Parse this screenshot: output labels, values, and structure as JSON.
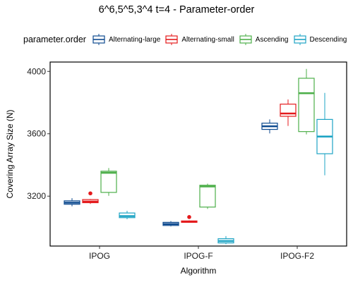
{
  "chart_data": {
    "type": "boxplot",
    "title": "6^6,5^5,3^4 t=4 - Parameter-order",
    "xlabel": "Algorithm",
    "ylabel": "Covering Array Size (N)",
    "categories": [
      "IPOG",
      "IPOG-F",
      "IPOG-F2"
    ],
    "ylim": [
      2880,
      4060
    ],
    "yticks": [
      3200,
      3600,
      4000
    ],
    "grid": false,
    "legend": {
      "title": "parameter.order",
      "position": "top"
    },
    "series": [
      {
        "name": "Alternating-large",
        "color": "#0d4a8f",
        "boxes": [
          {
            "min": 3135,
            "q1": 3148,
            "median": 3158,
            "q3": 3170,
            "max": 3187,
            "outliers": []
          },
          {
            "min": 3006,
            "q1": 3012,
            "median": 3021,
            "q3": 3032,
            "max": 3040,
            "outliers": []
          },
          {
            "min": 3602,
            "q1": 3628,
            "median": 3648,
            "q3": 3668,
            "max": 3692,
            "outliers": []
          }
        ]
      },
      {
        "name": "Alternating-small",
        "color": "#e41a1c",
        "boxes": [
          {
            "min": 3150,
            "q1": 3158,
            "median": 3165,
            "q3": 3178,
            "max": 3182,
            "outliers": [
              3218
            ]
          },
          {
            "min": 3030,
            "q1": 3032,
            "median": 3036,
            "q3": 3041,
            "max": 3045,
            "outliers": [
              3066
            ]
          },
          {
            "min": 3650,
            "q1": 3712,
            "median": 3730,
            "q3": 3790,
            "max": 3820,
            "outliers": []
          }
        ]
      },
      {
        "name": "Ascending",
        "color": "#4daf4a",
        "boxes": [
          {
            "min": 3202,
            "q1": 3224,
            "median": 3350,
            "q3": 3360,
            "max": 3380,
            "outliers": []
          },
          {
            "min": 3118,
            "q1": 3130,
            "median": 3262,
            "q3": 3270,
            "max": 3280,
            "outliers": []
          },
          {
            "min": 3596,
            "q1": 3614,
            "median": 3860,
            "q3": 3956,
            "max": 4016,
            "outliers": []
          }
        ]
      },
      {
        "name": "Descending",
        "color": "#1ea4c4",
        "boxes": [
          {
            "min": 3052,
            "q1": 3062,
            "median": 3072,
            "q3": 3092,
            "max": 3106,
            "outliers": []
          },
          {
            "min": 2892,
            "q1": 2900,
            "median": 2912,
            "q3": 2927,
            "max": 2944,
            "outliers": []
          },
          {
            "min": 3334,
            "q1": 3472,
            "median": 3582,
            "q3": 3692,
            "max": 3862,
            "outliers": []
          }
        ]
      }
    ]
  }
}
